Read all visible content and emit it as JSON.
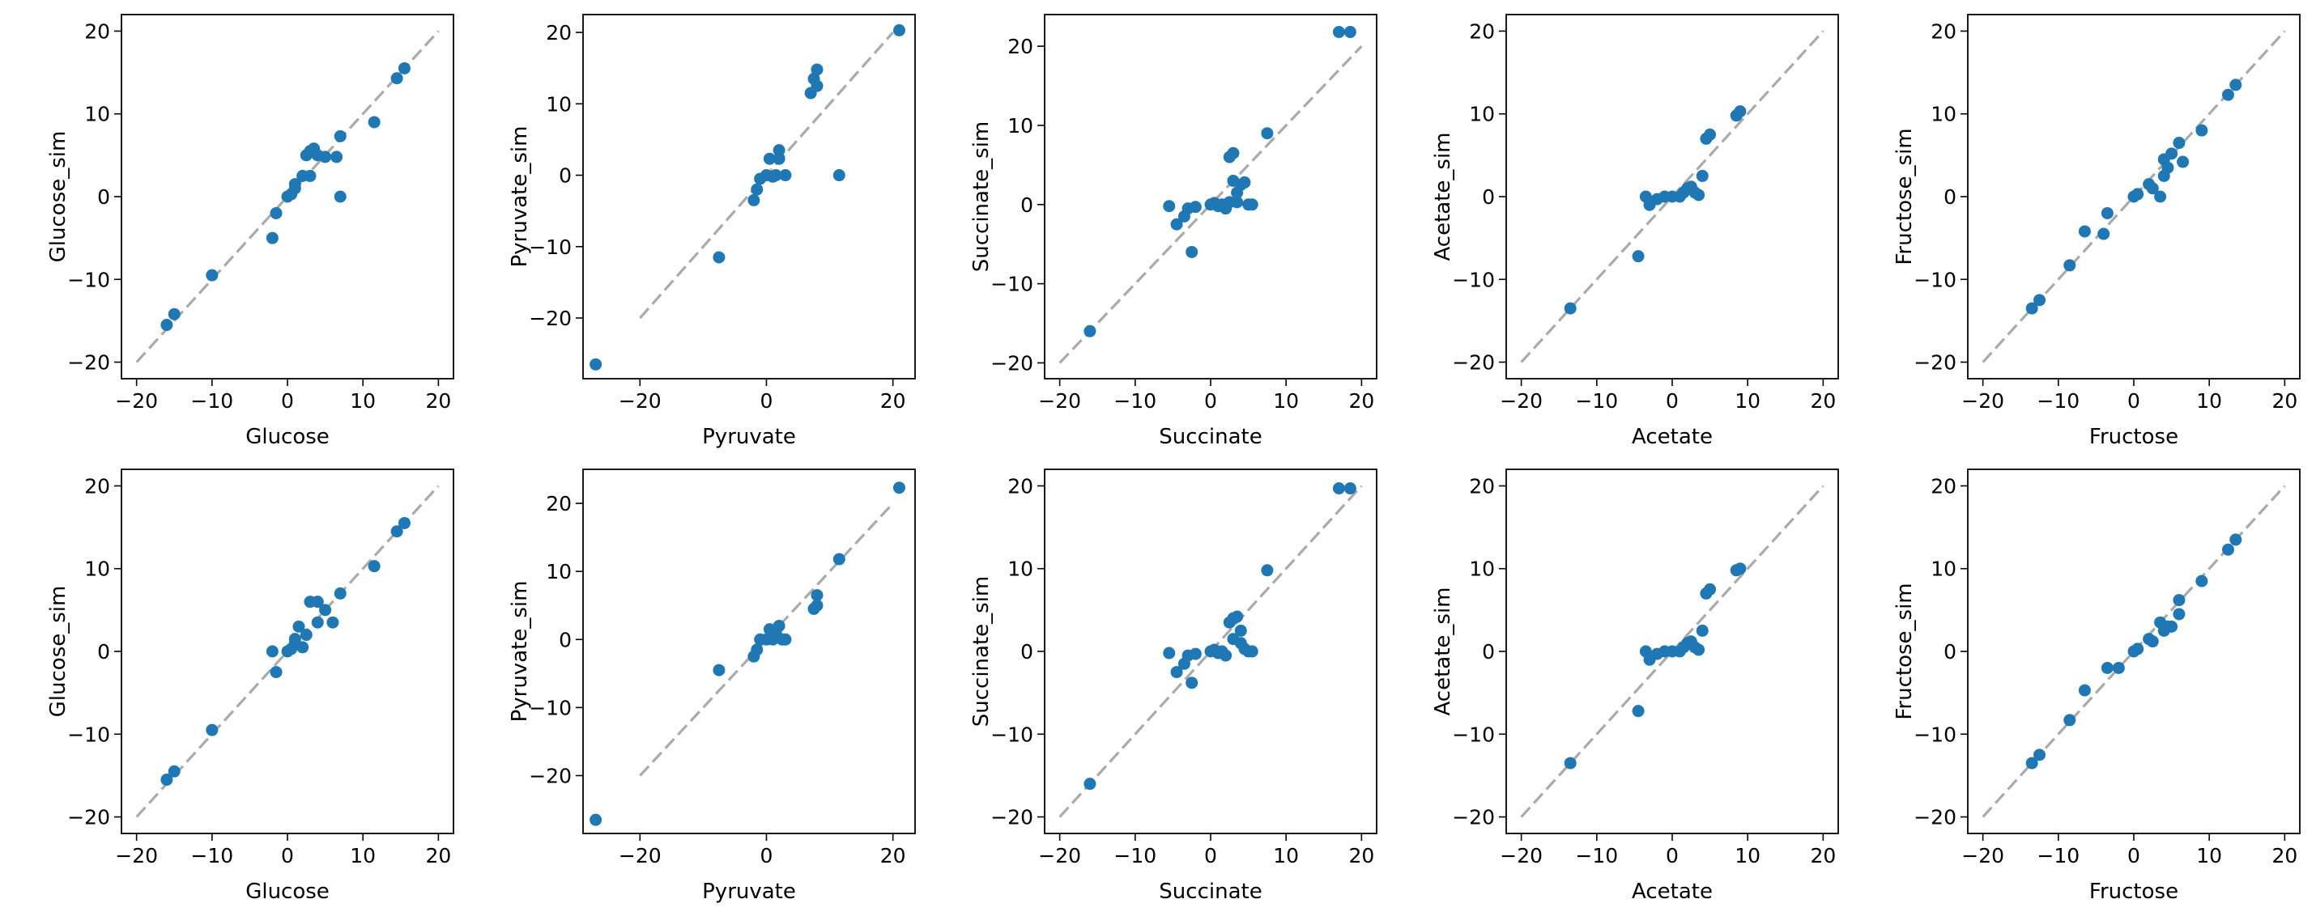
{
  "colors": {
    "points": "#1f77b4",
    "reference_line": "#aaaaaa",
    "axes": "#000000"
  },
  "chart_data": [
    {
      "type": "scatter",
      "xlabel": "Glucose",
      "ylabel": "Glucose_sim",
      "xlim": [
        -22,
        22
      ],
      "ylim": [
        -22,
        22
      ],
      "xticks": [
        -20,
        -10,
        0,
        10,
        20
      ],
      "yticks": [
        -20,
        -10,
        0,
        10,
        20
      ],
      "reference_line": {
        "x": [
          -20,
          20
        ],
        "y": [
          -20,
          20
        ]
      },
      "grid": false,
      "points": [
        [
          -16,
          -15.5
        ],
        [
          -15,
          -14.2
        ],
        [
          -10,
          -9.5
        ],
        [
          -2,
          -5
        ],
        [
          -1.5,
          -2
        ],
        [
          0,
          0
        ],
        [
          0.5,
          0.3
        ],
        [
          1,
          1
        ],
        [
          1,
          1.5
        ],
        [
          2,
          2.5
        ],
        [
          2.5,
          5
        ],
        [
          3,
          2.5
        ],
        [
          3,
          5.5
        ],
        [
          3.5,
          5.8
        ],
        [
          4,
          5
        ],
        [
          5,
          4.8
        ],
        [
          6.5,
          4.8
        ],
        [
          7,
          7.3
        ],
        [
          7,
          0
        ],
        [
          11.5,
          9
        ],
        [
          14.5,
          14.3
        ],
        [
          15.5,
          15.5
        ]
      ]
    },
    {
      "type": "scatter",
      "xlabel": "Pyruvate",
      "ylabel": "Pyruvate_sim",
      "xlim": [
        -29,
        23.5
      ],
      "ylim": [
        -28.5,
        22.5
      ],
      "xticks": [
        -20,
        0,
        20
      ],
      "yticks": [
        -20,
        -10,
        0,
        10,
        20
      ],
      "reference_line": {
        "x": [
          -20,
          20
        ],
        "y": [
          -20,
          20
        ]
      },
      "grid": false,
      "points": [
        [
          -27,
          -26.5
        ],
        [
          -7.5,
          -11.5
        ],
        [
          -2,
          -3.5
        ],
        [
          -1.5,
          -2
        ],
        [
          -1,
          -0.5
        ],
        [
          0,
          0
        ],
        [
          0.5,
          2.3
        ],
        [
          1,
          -0.2
        ],
        [
          1.5,
          0
        ],
        [
          2,
          3.5
        ],
        [
          2,
          2.3
        ],
        [
          3,
          0
        ],
        [
          7,
          11.5
        ],
        [
          7.5,
          13.5
        ],
        [
          8,
          12.5
        ],
        [
          8,
          14.8
        ],
        [
          11.5,
          0
        ],
        [
          21,
          20.3
        ]
      ]
    },
    {
      "type": "scatter",
      "xlabel": "Succinate",
      "ylabel": "Succinate_sim",
      "xlim": [
        -22,
        22
      ],
      "ylim": [
        -22,
        24
      ],
      "xticks": [
        -20,
        -10,
        0,
        10,
        20
      ],
      "yticks": [
        -20,
        -10,
        0,
        10,
        20
      ],
      "reference_line": {
        "x": [
          -20,
          20
        ],
        "y": [
          -20,
          20
        ]
      },
      "grid": false,
      "points": [
        [
          -16,
          -16
        ],
        [
          -5.5,
          -0.2
        ],
        [
          -4.5,
          -2.5
        ],
        [
          -3.5,
          -1.5
        ],
        [
          -3,
          -0.5
        ],
        [
          -2.5,
          -6
        ],
        [
          -2,
          -0.3
        ],
        [
          0,
          0
        ],
        [
          0.5,
          0.2
        ],
        [
          1,
          -0.2
        ],
        [
          1.5,
          0
        ],
        [
          2,
          -0.5
        ],
        [
          2.5,
          0.3
        ],
        [
          2.5,
          6
        ],
        [
          3,
          3
        ],
        [
          3,
          6.5
        ],
        [
          3.5,
          0.3
        ],
        [
          3.5,
          1.5
        ],
        [
          4,
          2.5
        ],
        [
          4.5,
          2.8
        ],
        [
          5,
          0
        ],
        [
          5.5,
          0
        ],
        [
          7.5,
          9
        ],
        [
          17,
          21.8
        ],
        [
          18.5,
          21.8
        ]
      ]
    },
    {
      "type": "scatter",
      "xlabel": "Acetate",
      "ylabel": "Acetate_sim",
      "xlim": [
        -22,
        22
      ],
      "ylim": [
        -22,
        22
      ],
      "xticks": [
        -20,
        -10,
        0,
        10,
        20
      ],
      "yticks": [
        -20,
        -10,
        0,
        10,
        20
      ],
      "reference_line": {
        "x": [
          -20,
          20
        ],
        "y": [
          -20,
          20
        ]
      },
      "grid": false,
      "points": [
        [
          -13.5,
          -13.5
        ],
        [
          -4.5,
          -7.2
        ],
        [
          -3.5,
          0
        ],
        [
          -3,
          -1
        ],
        [
          -2,
          -0.3
        ],
        [
          -1,
          0
        ],
        [
          0,
          0
        ],
        [
          1,
          0
        ],
        [
          1.5,
          0.5
        ],
        [
          2,
          1
        ],
        [
          2.5,
          1.2
        ],
        [
          3,
          0.5
        ],
        [
          3.5,
          0.2
        ],
        [
          4,
          2.5
        ],
        [
          4.5,
          7
        ],
        [
          5,
          7.5
        ],
        [
          8.5,
          9.8
        ],
        [
          9,
          10.3
        ]
      ]
    },
    {
      "type": "scatter",
      "xlabel": "Fructose",
      "ylabel": "Fructose_sim",
      "xlim": [
        -22,
        22
      ],
      "ylim": [
        -22,
        22
      ],
      "xticks": [
        -20,
        -10,
        0,
        10,
        20
      ],
      "yticks": [
        -20,
        -10,
        0,
        10,
        20
      ],
      "reference_line": {
        "x": [
          -20,
          20
        ],
        "y": [
          -20,
          20
        ]
      },
      "grid": false,
      "points": [
        [
          -13.5,
          -13.5
        ],
        [
          -12.5,
          -12.5
        ],
        [
          -8.5,
          -8.3
        ],
        [
          -6.5,
          -4.2
        ],
        [
          -4,
          -4.5
        ],
        [
          -3.5,
          -2
        ],
        [
          0,
          0
        ],
        [
          0.5,
          0.3
        ],
        [
          2,
          1.5
        ],
        [
          2.5,
          1
        ],
        [
          3.5,
          0
        ],
        [
          4,
          2.5
        ],
        [
          4,
          4.5
        ],
        [
          4.5,
          3.5
        ],
        [
          5,
          5.2
        ],
        [
          6,
          6.5
        ],
        [
          6.5,
          4.2
        ],
        [
          9,
          8
        ],
        [
          12.5,
          12.3
        ],
        [
          13.5,
          13.5
        ]
      ]
    },
    {
      "type": "scatter",
      "xlabel": "Glucose",
      "ylabel": "Glucose_sim",
      "xlim": [
        -22,
        22
      ],
      "ylim": [
        -22,
        22
      ],
      "xticks": [
        -20,
        -10,
        0,
        10,
        20
      ],
      "yticks": [
        -20,
        -10,
        0,
        10,
        20
      ],
      "reference_line": {
        "x": [
          -20,
          20
        ],
        "y": [
          -20,
          20
        ]
      },
      "grid": false,
      "points": [
        [
          -16,
          -15.5
        ],
        [
          -15,
          -14.5
        ],
        [
          -10,
          -9.5
        ],
        [
          -2,
          0
        ],
        [
          -1.5,
          -2.5
        ],
        [
          0,
          0
        ],
        [
          0.5,
          0.3
        ],
        [
          1,
          1
        ],
        [
          1,
          1.5
        ],
        [
          1.5,
          3
        ],
        [
          2,
          0.5
        ],
        [
          2.5,
          2
        ],
        [
          3,
          6
        ],
        [
          4,
          6
        ],
        [
          4,
          3.5
        ],
        [
          5,
          5
        ],
        [
          6,
          3.5
        ],
        [
          7,
          7
        ],
        [
          11.5,
          10.3
        ],
        [
          14.5,
          14.5
        ],
        [
          15.5,
          15.5
        ]
      ]
    },
    {
      "type": "scatter",
      "xlabel": "Pyruvate",
      "ylabel": "Pyruvate_sim",
      "xlim": [
        -29,
        23.5
      ],
      "ylim": [
        -28.5,
        25
      ],
      "xticks": [
        -20,
        0,
        20
      ],
      "yticks": [
        -20,
        -10,
        0,
        10,
        20
      ],
      "reference_line": {
        "x": [
          -20,
          20
        ],
        "y": [
          -20,
          20
        ]
      },
      "grid": false,
      "points": [
        [
          -27,
          -26.5
        ],
        [
          -7.5,
          -4.5
        ],
        [
          -2,
          -2.5
        ],
        [
          -1.5,
          -1.5
        ],
        [
          -1,
          0
        ],
        [
          0,
          0
        ],
        [
          0.5,
          1.5
        ],
        [
          1,
          0
        ],
        [
          1.5,
          1
        ],
        [
          2,
          2
        ],
        [
          2.5,
          0
        ],
        [
          3,
          0
        ],
        [
          7.5,
          4.5
        ],
        [
          8,
          5
        ],
        [
          8,
          6.5
        ],
        [
          11.5,
          11.8
        ],
        [
          21,
          22.3
        ]
      ]
    },
    {
      "type": "scatter",
      "xlabel": "Succinate",
      "ylabel": "Succinate_sim",
      "xlim": [
        -22,
        22
      ],
      "ylim": [
        -22,
        22
      ],
      "xticks": [
        -20,
        -10,
        0,
        10,
        20
      ],
      "yticks": [
        -20,
        -10,
        0,
        10,
        20
      ],
      "reference_line": {
        "x": [
          -20,
          20
        ],
        "y": [
          -20,
          20
        ]
      },
      "grid": false,
      "points": [
        [
          -16,
          -16
        ],
        [
          -5.5,
          -0.2
        ],
        [
          -4.5,
          -2.5
        ],
        [
          -3.5,
          -1.5
        ],
        [
          -3,
          -0.5
        ],
        [
          -2.5,
          -3.8
        ],
        [
          -2,
          -0.3
        ],
        [
          0,
          0
        ],
        [
          0.5,
          0.2
        ],
        [
          1,
          -0.2
        ],
        [
          1.5,
          0
        ],
        [
          2,
          -0.5
        ],
        [
          2.5,
          3.5
        ],
        [
          3,
          4
        ],
        [
          3,
          1.5
        ],
        [
          3.5,
          4.2
        ],
        [
          4,
          2.5
        ],
        [
          4,
          1
        ],
        [
          4.5,
          0.3
        ],
        [
          5,
          0
        ],
        [
          5.5,
          0
        ],
        [
          7.5,
          9.8
        ],
        [
          17,
          19.7
        ],
        [
          18.5,
          19.7
        ]
      ]
    },
    {
      "type": "scatter",
      "xlabel": "Acetate",
      "ylabel": "Acetate_sim",
      "xlim": [
        -22,
        22
      ],
      "ylim": [
        -22,
        22
      ],
      "xticks": [
        -20,
        -10,
        0,
        10,
        20
      ],
      "yticks": [
        -20,
        -10,
        0,
        10,
        20
      ],
      "reference_line": {
        "x": [
          -20,
          20
        ],
        "y": [
          -20,
          20
        ]
      },
      "grid": false,
      "points": [
        [
          -13.5,
          -13.5
        ],
        [
          -4.5,
          -7.2
        ],
        [
          -3.5,
          0
        ],
        [
          -3,
          -1
        ],
        [
          -2,
          -0.3
        ],
        [
          -1,
          0
        ],
        [
          0,
          0
        ],
        [
          1,
          0
        ],
        [
          1.5,
          0.5
        ],
        [
          2,
          1
        ],
        [
          2.5,
          1.2
        ],
        [
          3,
          0.5
        ],
        [
          3.5,
          0.2
        ],
        [
          4,
          2.5
        ],
        [
          4.5,
          7
        ],
        [
          5,
          7.5
        ],
        [
          8.5,
          9.8
        ],
        [
          9,
          10
        ]
      ]
    },
    {
      "type": "scatter",
      "xlabel": "Fructose",
      "ylabel": "Fructose_sim",
      "xlim": [
        -22,
        22
      ],
      "ylim": [
        -22,
        22
      ],
      "xticks": [
        -20,
        -10,
        0,
        10,
        20
      ],
      "yticks": [
        -20,
        -10,
        0,
        10,
        20
      ],
      "reference_line": {
        "x": [
          -20,
          20
        ],
        "y": [
          -20,
          20
        ]
      },
      "grid": false,
      "points": [
        [
          -13.5,
          -13.5
        ],
        [
          -12.5,
          -12.5
        ],
        [
          -8.5,
          -8.3
        ],
        [
          -6.5,
          -4.7
        ],
        [
          -3.5,
          -2
        ],
        [
          -2,
          -2
        ],
        [
          0,
          0
        ],
        [
          0.5,
          0.3
        ],
        [
          2,
          1.5
        ],
        [
          2.5,
          1.2
        ],
        [
          3.5,
          3.5
        ],
        [
          4,
          2.5
        ],
        [
          4.5,
          3
        ],
        [
          5,
          3
        ],
        [
          6,
          6.2
        ],
        [
          6,
          4.5
        ],
        [
          9,
          8.5
        ],
        [
          12.5,
          12.3
        ],
        [
          13.5,
          13.5
        ]
      ]
    }
  ]
}
